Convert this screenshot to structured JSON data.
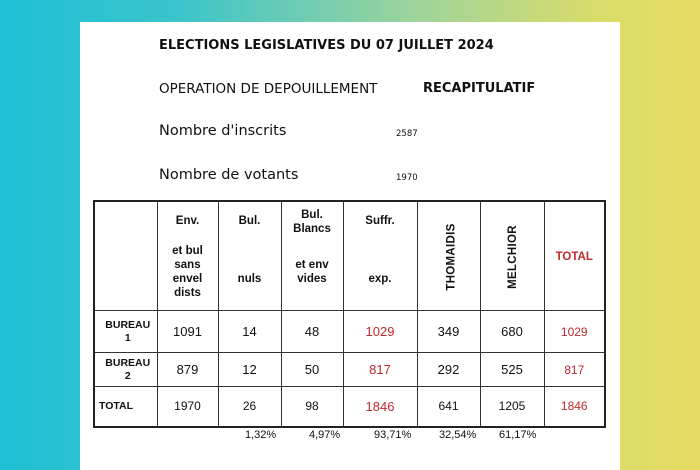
{
  "document": {
    "title": "ELECTIONS LEGISLATIVES DU 07 JUILLET 2024",
    "operation_label": "OPERATION DE DEPOUILLEMENT",
    "recap_label": "RECAPITULATIF",
    "inscrits_label": "Nombre d'inscrits",
    "inscrits_value": "2587",
    "votants_label": "Nombre de votants",
    "votants_value": "1970"
  },
  "table": {
    "headers": {
      "env_line1": "Env.",
      "env_line2": "et bul\nsans\nenvel\ndists",
      "bul_line1": "Bul.",
      "bul_line2": "nuls",
      "blancs_line1": "Bul.\nBlancs",
      "blancs_line2": "et env\nvides",
      "suffr_line1": "Suffr.",
      "suffr_line2": "exp.",
      "cand1": "THOMAIDIS",
      "cand2": "MELCHIOR",
      "total": "TOTAL"
    },
    "rows": [
      {
        "label": "BUREAU\n1",
        "env": "1091",
        "nuls": "14",
        "blancs": "48",
        "suffr": "1029",
        "cand1": "349",
        "cand2": "680",
        "total": "1029"
      },
      {
        "label": "BUREAU\n2",
        "env": "879",
        "nuls": "12",
        "blancs": "50",
        "suffr": "817",
        "cand1": "292",
        "cand2": "525",
        "total": "817"
      },
      {
        "label": "TOTAL",
        "env": "1970",
        "nuls": "26",
        "blancs": "98",
        "suffr": "1846",
        "cand1": "641",
        "cand2": "1205",
        "total": "1846"
      }
    ],
    "percentages": {
      "nuls": "1,32%",
      "blancs": "4,97%",
      "suffr": "93,71%",
      "cand1": "32,54%",
      "cand2": "61,17%"
    }
  },
  "colors": {
    "highlight": "#c0282d"
  }
}
